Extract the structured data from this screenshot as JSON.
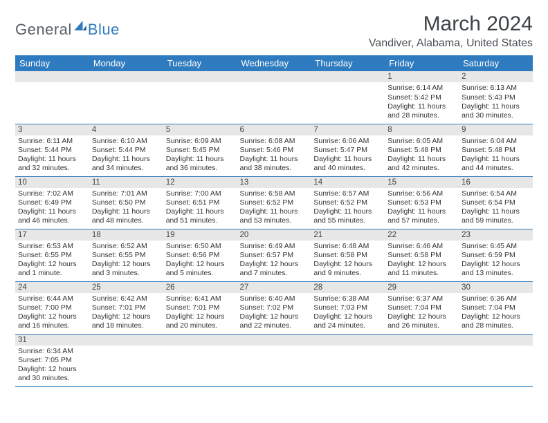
{
  "header": {
    "logo_general": "General",
    "logo_blue": "Blue",
    "month_title": "March 2024",
    "location": "Vandiver, Alabama, United States"
  },
  "colors": {
    "header_bg": "#2f7bbf",
    "header_fg": "#ffffff",
    "daynum_bg": "#e7e7e7",
    "border": "#2f7bbf",
    "text": "#333333"
  },
  "weekdays": [
    "Sunday",
    "Monday",
    "Tuesday",
    "Wednesday",
    "Thursday",
    "Friday",
    "Saturday"
  ],
  "weeks": [
    [
      null,
      null,
      null,
      null,
      null,
      {
        "n": "1",
        "sr": "Sunrise: 6:14 AM",
        "ss": "Sunset: 5:42 PM",
        "dl": "Daylight: 11 hours and 28 minutes."
      },
      {
        "n": "2",
        "sr": "Sunrise: 6:13 AM",
        "ss": "Sunset: 5:43 PM",
        "dl": "Daylight: 11 hours and 30 minutes."
      }
    ],
    [
      {
        "n": "3",
        "sr": "Sunrise: 6:11 AM",
        "ss": "Sunset: 5:44 PM",
        "dl": "Daylight: 11 hours and 32 minutes."
      },
      {
        "n": "4",
        "sr": "Sunrise: 6:10 AM",
        "ss": "Sunset: 5:44 PM",
        "dl": "Daylight: 11 hours and 34 minutes."
      },
      {
        "n": "5",
        "sr": "Sunrise: 6:09 AM",
        "ss": "Sunset: 5:45 PM",
        "dl": "Daylight: 11 hours and 36 minutes."
      },
      {
        "n": "6",
        "sr": "Sunrise: 6:08 AM",
        "ss": "Sunset: 5:46 PM",
        "dl": "Daylight: 11 hours and 38 minutes."
      },
      {
        "n": "7",
        "sr": "Sunrise: 6:06 AM",
        "ss": "Sunset: 5:47 PM",
        "dl": "Daylight: 11 hours and 40 minutes."
      },
      {
        "n": "8",
        "sr": "Sunrise: 6:05 AM",
        "ss": "Sunset: 5:48 PM",
        "dl": "Daylight: 11 hours and 42 minutes."
      },
      {
        "n": "9",
        "sr": "Sunrise: 6:04 AM",
        "ss": "Sunset: 5:48 PM",
        "dl": "Daylight: 11 hours and 44 minutes."
      }
    ],
    [
      {
        "n": "10",
        "sr": "Sunrise: 7:02 AM",
        "ss": "Sunset: 6:49 PM",
        "dl": "Daylight: 11 hours and 46 minutes."
      },
      {
        "n": "11",
        "sr": "Sunrise: 7:01 AM",
        "ss": "Sunset: 6:50 PM",
        "dl": "Daylight: 11 hours and 48 minutes."
      },
      {
        "n": "12",
        "sr": "Sunrise: 7:00 AM",
        "ss": "Sunset: 6:51 PM",
        "dl": "Daylight: 11 hours and 51 minutes."
      },
      {
        "n": "13",
        "sr": "Sunrise: 6:58 AM",
        "ss": "Sunset: 6:52 PM",
        "dl": "Daylight: 11 hours and 53 minutes."
      },
      {
        "n": "14",
        "sr": "Sunrise: 6:57 AM",
        "ss": "Sunset: 6:52 PM",
        "dl": "Daylight: 11 hours and 55 minutes."
      },
      {
        "n": "15",
        "sr": "Sunrise: 6:56 AM",
        "ss": "Sunset: 6:53 PM",
        "dl": "Daylight: 11 hours and 57 minutes."
      },
      {
        "n": "16",
        "sr": "Sunrise: 6:54 AM",
        "ss": "Sunset: 6:54 PM",
        "dl": "Daylight: 11 hours and 59 minutes."
      }
    ],
    [
      {
        "n": "17",
        "sr": "Sunrise: 6:53 AM",
        "ss": "Sunset: 6:55 PM",
        "dl": "Daylight: 12 hours and 1 minute."
      },
      {
        "n": "18",
        "sr": "Sunrise: 6:52 AM",
        "ss": "Sunset: 6:55 PM",
        "dl": "Daylight: 12 hours and 3 minutes."
      },
      {
        "n": "19",
        "sr": "Sunrise: 6:50 AM",
        "ss": "Sunset: 6:56 PM",
        "dl": "Daylight: 12 hours and 5 minutes."
      },
      {
        "n": "20",
        "sr": "Sunrise: 6:49 AM",
        "ss": "Sunset: 6:57 PM",
        "dl": "Daylight: 12 hours and 7 minutes."
      },
      {
        "n": "21",
        "sr": "Sunrise: 6:48 AM",
        "ss": "Sunset: 6:58 PM",
        "dl": "Daylight: 12 hours and 9 minutes."
      },
      {
        "n": "22",
        "sr": "Sunrise: 6:46 AM",
        "ss": "Sunset: 6:58 PM",
        "dl": "Daylight: 12 hours and 11 minutes."
      },
      {
        "n": "23",
        "sr": "Sunrise: 6:45 AM",
        "ss": "Sunset: 6:59 PM",
        "dl": "Daylight: 12 hours and 13 minutes."
      }
    ],
    [
      {
        "n": "24",
        "sr": "Sunrise: 6:44 AM",
        "ss": "Sunset: 7:00 PM",
        "dl": "Daylight: 12 hours and 16 minutes."
      },
      {
        "n": "25",
        "sr": "Sunrise: 6:42 AM",
        "ss": "Sunset: 7:01 PM",
        "dl": "Daylight: 12 hours and 18 minutes."
      },
      {
        "n": "26",
        "sr": "Sunrise: 6:41 AM",
        "ss": "Sunset: 7:01 PM",
        "dl": "Daylight: 12 hours and 20 minutes."
      },
      {
        "n": "27",
        "sr": "Sunrise: 6:40 AM",
        "ss": "Sunset: 7:02 PM",
        "dl": "Daylight: 12 hours and 22 minutes."
      },
      {
        "n": "28",
        "sr": "Sunrise: 6:38 AM",
        "ss": "Sunset: 7:03 PM",
        "dl": "Daylight: 12 hours and 24 minutes."
      },
      {
        "n": "29",
        "sr": "Sunrise: 6:37 AM",
        "ss": "Sunset: 7:04 PM",
        "dl": "Daylight: 12 hours and 26 minutes."
      },
      {
        "n": "30",
        "sr": "Sunrise: 6:36 AM",
        "ss": "Sunset: 7:04 PM",
        "dl": "Daylight: 12 hours and 28 minutes."
      }
    ],
    [
      {
        "n": "31",
        "sr": "Sunrise: 6:34 AM",
        "ss": "Sunset: 7:05 PM",
        "dl": "Daylight: 12 hours and 30 minutes."
      },
      null,
      null,
      null,
      null,
      null,
      null
    ]
  ]
}
